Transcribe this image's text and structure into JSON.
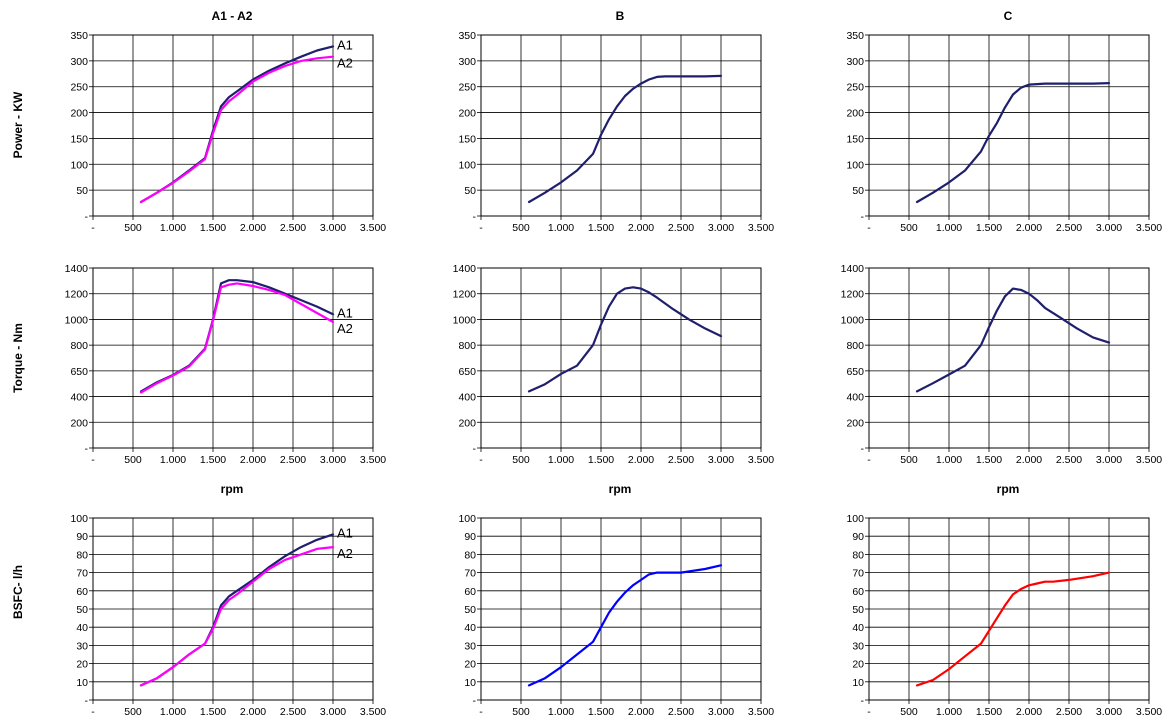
{
  "labels": {
    "titles": [
      "A1 - A2",
      "B",
      "C"
    ],
    "row_labels": [
      "Power - KW",
      "Torque - Nm",
      "BSFC- l/h"
    ],
    "xlabel": "rpm"
  },
  "colors": {
    "navy": "#1f1f6e",
    "magenta": "#ff00ff",
    "blue": "#0000ff",
    "red": "#ff0000",
    "grid": "#000000"
  },
  "chart_data": [
    {
      "type": "line",
      "title": "A1 - A2",
      "ylabel": "Power - KW",
      "xlabel": "",
      "xlim": [
        0,
        3500
      ],
      "ylim": [
        0,
        350
      ],
      "xticks": [
        "-",
        "500",
        "1.000",
        "1.500",
        "2.000",
        "2.500",
        "3.000",
        "3.500"
      ],
      "yticks": [
        "-",
        "50",
        "100",
        "150",
        "200",
        "250",
        "300",
        "350"
      ],
      "series": [
        {
          "name": "A1",
          "color": "navy",
          "x": [
            600,
            800,
            1000,
            1200,
            1400,
            1500,
            1600,
            1700,
            1800,
            2000,
            2200,
            2400,
            2600,
            2800,
            3000
          ],
          "y": [
            27,
            45,
            65,
            88,
            112,
            165,
            212,
            230,
            241,
            264,
            281,
            295,
            308,
            320,
            328
          ]
        },
        {
          "name": "A2",
          "color": "magenta",
          "x": [
            600,
            800,
            1000,
            1200,
            1400,
            1500,
            1600,
            1700,
            1800,
            2000,
            2200,
            2400,
            2600,
            2800,
            3000
          ],
          "y": [
            27,
            45,
            64,
            86,
            110,
            160,
            205,
            222,
            234,
            260,
            277,
            290,
            300,
            305,
            308
          ]
        }
      ]
    },
    {
      "type": "line",
      "title": "B",
      "ylabel": "",
      "xlabel": "",
      "xlim": [
        0,
        3500
      ],
      "ylim": [
        0,
        350
      ],
      "xticks": [
        "-",
        "500",
        "1.000",
        "1.500",
        "2.000",
        "2.500",
        "3.000",
        "3.500"
      ],
      "yticks": [
        "-",
        "50",
        "100",
        "150",
        "200",
        "250",
        "300",
        "350"
      ],
      "series": [
        {
          "color": "navy",
          "x": [
            600,
            800,
            1000,
            1200,
            1400,
            1500,
            1600,
            1700,
            1800,
            1900,
            2000,
            2100,
            2200,
            2300,
            2500,
            2800,
            3000
          ],
          "y": [
            27,
            45,
            65,
            88,
            120,
            157,
            187,
            212,
            232,
            246,
            256,
            264,
            269,
            270,
            270,
            270,
            271
          ]
        }
      ]
    },
    {
      "type": "line",
      "title": "C",
      "ylabel": "",
      "xlabel": "",
      "xlim": [
        0,
        3500
      ],
      "ylim": [
        0,
        350
      ],
      "xticks": [
        "-",
        "500",
        "1.000",
        "1.500",
        "2.000",
        "2.500",
        "3.000",
        "3.500"
      ],
      "yticks": [
        "-",
        "50",
        "100",
        "150",
        "200",
        "250",
        "300",
        "350"
      ],
      "series": [
        {
          "color": "navy",
          "x": [
            600,
            800,
            1000,
            1200,
            1400,
            1500,
            1600,
            1700,
            1800,
            1900,
            2000,
            2200,
            2500,
            2800,
            3000
          ],
          "y": [
            27,
            45,
            65,
            88,
            125,
            155,
            180,
            210,
            235,
            248,
            254,
            256,
            256,
            256,
            257
          ]
        }
      ]
    },
    {
      "type": "line",
      "title": "",
      "ylabel": "Torque - Nm",
      "xlabel": "rpm",
      "xlim": [
        0,
        3500
      ],
      "ylim": [
        0,
        1400
      ],
      "yscale": "category",
      "xticks": [
        "-",
        "500",
        "1.000",
        "1.500",
        "2.000",
        "2.500",
        "3.000",
        "3.500"
      ],
      "yticks": [
        "-",
        "200",
        "400",
        "650",
        "800",
        "1000",
        "1200",
        "1400"
      ],
      "series": [
        {
          "name": "A1",
          "color": "navy",
          "x": [
            600,
            800,
            1000,
            1200,
            1400,
            1500,
            1600,
            1700,
            1800,
            2000,
            2200,
            2400,
            2600,
            2800,
            3000
          ],
          "y": [
            450,
            540,
            610,
            680,
            780,
            1000,
            1280,
            1305,
            1305,
            1290,
            1250,
            1200,
            1150,
            1100,
            1040
          ]
        },
        {
          "name": "A2",
          "color": "magenta",
          "x": [
            600,
            800,
            1000,
            1200,
            1400,
            1500,
            1600,
            1700,
            1800,
            2000,
            2200,
            2400,
            2600,
            2800,
            3000
          ],
          "y": [
            440,
            530,
            605,
            675,
            775,
            990,
            1250,
            1270,
            1280,
            1260,
            1230,
            1190,
            1120,
            1050,
            980
          ]
        }
      ]
    },
    {
      "type": "line",
      "title": "",
      "ylabel": "",
      "xlabel": "rpm",
      "xlim": [
        0,
        3500
      ],
      "ylim": [
        0,
        1400
      ],
      "yscale": "category",
      "xticks": [
        "-",
        "500",
        "1.000",
        "1.500",
        "2.000",
        "2.500",
        "3.000",
        "3.500"
      ],
      "yticks": [
        "-",
        "200",
        "400",
        "650",
        "800",
        "1000",
        "1200",
        "1400"
      ],
      "series": [
        {
          "color": "navy",
          "x": [
            600,
            800,
            1000,
            1200,
            1400,
            1500,
            1600,
            1700,
            1800,
            1900,
            2000,
            2100,
            2200,
            2400,
            2600,
            2800,
            3000
          ],
          "y": [
            450,
            520,
            620,
            680,
            800,
            960,
            1100,
            1200,
            1240,
            1250,
            1240,
            1210,
            1170,
            1080,
            1000,
            930,
            870
          ]
        }
      ]
    },
    {
      "type": "line",
      "title": "",
      "ylabel": "",
      "xlabel": "rpm",
      "xlim": [
        0,
        3500
      ],
      "ylim": [
        0,
        1400
      ],
      "yscale": "category",
      "xticks": [
        "-",
        "500",
        "1.000",
        "1.500",
        "2.000",
        "2.500",
        "3.000",
        "3.500"
      ],
      "yticks": [
        "-",
        "200",
        "400",
        "650",
        "800",
        "1000",
        "1200",
        "1400"
      ],
      "series": [
        {
          "color": "navy",
          "x": [
            600,
            800,
            1000,
            1200,
            1400,
            1500,
            1600,
            1700,
            1800,
            1900,
            2000,
            2100,
            2200,
            2400,
            2600,
            2800,
            3000
          ],
          "y": [
            450,
            530,
            615,
            680,
            800,
            940,
            1070,
            1180,
            1240,
            1230,
            1200,
            1150,
            1090,
            1010,
            930,
            860,
            820
          ]
        }
      ]
    },
    {
      "type": "line",
      "title": "",
      "ylabel": "BSFC- l/h",
      "xlabel": "",
      "xlim": [
        0,
        3500
      ],
      "ylim": [
        0,
        100
      ],
      "yticks": [
        "-",
        "10",
        "20",
        "30",
        "40",
        "50",
        "60",
        "70",
        "80",
        "90",
        "100"
      ],
      "xticks": [
        "-",
        "500",
        "1.000",
        "1.500",
        "2.000",
        "2.500",
        "3.000",
        "3.500"
      ],
      "series": [
        {
          "name": "A1",
          "color": "navy",
          "x": [
            600,
            800,
            1000,
            1200,
            1400,
            1500,
            1600,
            1700,
            1800,
            2000,
            2200,
            2400,
            2600,
            2800,
            3000
          ],
          "y": [
            8,
            12,
            18,
            25,
            31,
            40,
            52,
            57,
            60,
            66,
            73,
            79,
            84,
            88,
            91
          ]
        },
        {
          "name": "A2",
          "color": "magenta",
          "x": [
            600,
            800,
            1000,
            1200,
            1400,
            1500,
            1600,
            1700,
            1800,
            2000,
            2200,
            2400,
            2600,
            2800,
            3000
          ],
          "y": [
            8,
            12,
            18,
            25,
            31,
            39,
            50,
            55,
            58,
            65,
            72,
            77,
            80,
            83,
            84
          ]
        }
      ]
    },
    {
      "type": "line",
      "title": "",
      "ylabel": "",
      "xlabel": "",
      "xlim": [
        0,
        3500
      ],
      "ylim": [
        0,
        100
      ],
      "yticks": [
        "-",
        "10",
        "20",
        "30",
        "40",
        "50",
        "60",
        "70",
        "80",
        "90",
        "100"
      ],
      "xticks": [
        "-",
        "500",
        "1.000",
        "1.500",
        "2.000",
        "2.500",
        "3.000",
        "3.500"
      ],
      "series": [
        {
          "color": "blue",
          "x": [
            600,
            800,
            1000,
            1200,
            1400,
            1500,
            1600,
            1700,
            1800,
            1900,
            2000,
            2100,
            2200,
            2300,
            2500,
            2800,
            3000
          ],
          "y": [
            8,
            12,
            18,
            25,
            32,
            40,
            48,
            54,
            59,
            63,
            66,
            69,
            70,
            70,
            70,
            72,
            74
          ]
        }
      ]
    },
    {
      "type": "line",
      "title": "",
      "ylabel": "",
      "xlabel": "",
      "xlim": [
        0,
        3500
      ],
      "ylim": [
        0,
        100
      ],
      "yticks": [
        "-",
        "10",
        "20",
        "30",
        "40",
        "50",
        "60",
        "70",
        "80",
        "90",
        "100"
      ],
      "xticks": [
        "-",
        "500",
        "1.000",
        "1.500",
        "2.000",
        "2.500",
        "3.000",
        "3.500"
      ],
      "series": [
        {
          "color": "red",
          "x": [
            600,
            800,
            1000,
            1200,
            1400,
            1500,
            1600,
            1700,
            1800,
            1900,
            2000,
            2100,
            2200,
            2300,
            2500,
            2800,
            3000
          ],
          "y": [
            8,
            11,
            17,
            24,
            31,
            38,
            45,
            52,
            58,
            61,
            63,
            64,
            65,
            65,
            66,
            68,
            70
          ]
        }
      ]
    }
  ]
}
